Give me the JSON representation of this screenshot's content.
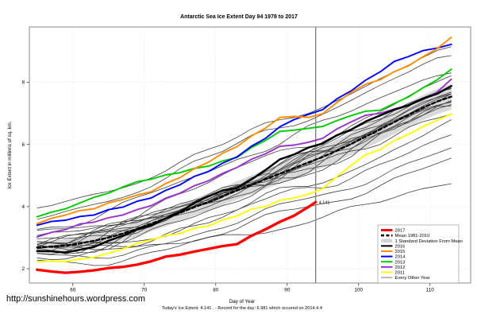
{
  "footer_url": "http://sunshinehours.wordpress.com",
  "chart_data": {
    "type": "line",
    "title": "Antarctic Sea Ice Extent Day 94 1978 to 2017",
    "xlabel": "Day of Year",
    "ylabel": "Ice Extent in millions of sq. km.",
    "caption": "Today's Ice Extent: 4.141 . - Record for the day: 6.981 which occured on 2014.4.4",
    "x_ticks": [
      60,
      70,
      80,
      90,
      100,
      110
    ],
    "y_ticks": [
      2,
      4,
      6,
      8
    ],
    "xlim": [
      54,
      115.5
    ],
    "ylim": [
      1.5,
      9.8
    ],
    "grid": "dotted",
    "marker_day": 94,
    "annotation": {
      "text": "4.141",
      "day": 94,
      "value": 4.141,
      "color": "#ff0000"
    },
    "days": [
      55,
      57,
      59,
      61,
      63,
      65,
      67,
      69,
      71,
      73,
      75,
      77,
      79,
      81,
      83,
      85,
      87,
      89,
      91,
      93,
      95,
      97,
      99,
      101,
      103,
      105,
      107,
      109,
      111,
      113
    ],
    "mean": {
      "name": "Mean 1981-2010",
      "color": "#000000",
      "values": [
        2.68,
        2.71,
        2.75,
        2.81,
        2.9,
        3.0,
        3.13,
        3.28,
        3.45,
        3.62,
        3.8,
        3.98,
        4.15,
        4.33,
        4.52,
        4.7,
        4.88,
        5.06,
        5.24,
        5.42,
        5.6,
        5.8,
        6.02,
        6.25,
        6.48,
        6.72,
        6.95,
        7.18,
        7.38,
        7.54
      ]
    },
    "band": {
      "name": "1 Standard Deviation From Mean",
      "color": "#d9d9d9",
      "start_halfwidth": 0.18,
      "end_halfwidth": 0.42
    },
    "series": [
      {
        "name": "2011",
        "color": "#ffff00",
        "values": [
          2.22,
          2.24,
          2.23,
          2.31,
          2.37,
          2.5,
          2.63,
          2.82,
          2.93,
          3.07,
          3.13,
          3.3,
          3.38,
          3.57,
          3.7,
          3.92,
          4.0,
          4.2,
          4.28,
          4.4,
          4.58,
          4.97,
          5.33,
          5.67,
          5.83,
          6.12,
          6.33,
          6.57,
          6.78,
          6.98
        ]
      },
      {
        "name": "2012",
        "color": "#9933cc",
        "values": [
          3.02,
          3.17,
          3.26,
          3.44,
          3.5,
          3.64,
          3.73,
          3.9,
          4.03,
          4.27,
          4.43,
          4.67,
          4.83,
          5.07,
          5.26,
          5.52,
          5.7,
          5.94,
          5.98,
          6.07,
          6.2,
          6.5,
          6.73,
          6.94,
          7.0,
          7.14,
          7.26,
          7.44,
          7.68,
          8.1
        ]
      },
      {
        "name": "2013",
        "color": "#00cc00",
        "values": [
          3.67,
          3.82,
          3.93,
          4.12,
          4.3,
          4.43,
          4.63,
          4.8,
          4.88,
          5.02,
          5.09,
          5.23,
          5.3,
          5.47,
          5.58,
          5.9,
          6.13,
          6.42,
          6.46,
          6.52,
          6.58,
          6.77,
          6.93,
          7.07,
          7.1,
          7.32,
          7.53,
          7.82,
          8.08,
          8.42
        ]
      },
      {
        "name": "2014",
        "color": "#0000ff",
        "values": [
          3.4,
          3.52,
          3.56,
          3.68,
          3.73,
          3.9,
          3.98,
          4.17,
          4.28,
          4.52,
          4.7,
          4.97,
          5.13,
          5.4,
          5.6,
          5.94,
          6.2,
          6.57,
          6.8,
          6.97,
          7.12,
          7.47,
          7.73,
          8.07,
          8.33,
          8.67,
          8.83,
          9.02,
          9.1,
          9.22
        ]
      },
      {
        "name": "2015",
        "color": "#ff8c00",
        "values": [
          3.45,
          3.62,
          3.73,
          3.87,
          3.93,
          4.12,
          4.23,
          4.37,
          4.48,
          4.74,
          4.93,
          5.22,
          5.43,
          5.72,
          5.93,
          6.27,
          6.53,
          6.87,
          6.9,
          6.87,
          6.99,
          7.35,
          7.68,
          7.94,
          8.08,
          8.34,
          8.53,
          8.82,
          9.08,
          9.45
        ]
      },
      {
        "name": "2016",
        "color": "#000000",
        "values": [
          2.57,
          2.56,
          2.52,
          2.61,
          2.7,
          2.9,
          3.06,
          3.27,
          3.4,
          3.62,
          3.83,
          4.12,
          4.33,
          4.52,
          4.6,
          4.87,
          5.18,
          5.52,
          5.68,
          5.9,
          6.03,
          6.3,
          6.48,
          6.74,
          6.93,
          7.12,
          7.26,
          7.47,
          7.63,
          7.88
        ]
      }
    ],
    "series_2017": {
      "name": "2017",
      "color": "#ff0000",
      "days": [
        55,
        57,
        59,
        61,
        63,
        65,
        67,
        69,
        71,
        73,
        75,
        77,
        79,
        81,
        83,
        85,
        87,
        89,
        91,
        93,
        94
      ],
      "values": [
        1.97,
        1.91,
        1.87,
        1.9,
        1.95,
        2.02,
        2.06,
        2.13,
        2.24,
        2.39,
        2.45,
        2.55,
        2.64,
        2.73,
        2.79,
        3.06,
        3.27,
        3.51,
        3.71,
        3.99,
        4.141
      ]
    },
    "other_years": {
      "name": "Every Other Year",
      "color": "#404040",
      "lines": [
        {
          "s": 2.15,
          "e": 5.6,
          "w": 0.12,
          "p": 1.0,
          "k": 1.15
        },
        {
          "s": 2.45,
          "e": 4.72,
          "w": 0.1,
          "p": 2.1,
          "k": 1.25
        },
        {
          "s": 2.35,
          "e": 5.95,
          "w": 0.11,
          "p": 0.9,
          "k": 1.18
        },
        {
          "s": 2.55,
          "e": 6.3,
          "w": 0.13,
          "p": 3.2,
          "k": 1.1
        },
        {
          "s": 2.5,
          "e": 6.6,
          "w": 0.12,
          "p": 5.4,
          "k": 1.08
        },
        {
          "s": 2.6,
          "e": 7.1,
          "w": 0.16,
          "p": 0.6,
          "k": 1.0
        },
        {
          "s": 2.72,
          "e": 7.25,
          "w": 0.18,
          "p": 1.7,
          "k": 1.0
        },
        {
          "s": 2.8,
          "e": 7.4,
          "w": 0.14,
          "p": 2.8,
          "k": 1.0
        },
        {
          "s": 2.62,
          "e": 7.55,
          "w": 0.17,
          "p": 3.9,
          "k": 1.0
        },
        {
          "s": 2.88,
          "e": 7.65,
          "w": 0.15,
          "p": 5.0,
          "k": 1.0
        },
        {
          "s": 2.95,
          "e": 7.8,
          "w": 0.13,
          "p": 0.2,
          "k": 1.0
        },
        {
          "s": 2.66,
          "e": 7.35,
          "w": 0.19,
          "p": 1.3,
          "k": 1.0
        },
        {
          "s": 2.75,
          "e": 7.9,
          "w": 0.16,
          "p": 2.4,
          "k": 1.0
        },
        {
          "s": 2.85,
          "e": 7.5,
          "w": 0.18,
          "p": 4.5,
          "k": 1.0
        },
        {
          "s": 2.7,
          "e": 7.45,
          "w": 0.17,
          "p": 0.4,
          "k": 1.0
        },
        {
          "s": 2.9,
          "e": 7.58,
          "w": 0.16,
          "p": 2.0,
          "k": 1.0
        },
        {
          "s": 2.78,
          "e": 7.7,
          "w": 0.15,
          "p": 3.0,
          "k": 1.0
        },
        {
          "s": 3.1,
          "e": 8.1,
          "w": 0.12,
          "p": 3.5,
          "k": 0.92
        },
        {
          "s": 3.3,
          "e": 8.45,
          "w": 0.1,
          "p": 4.6,
          "k": 0.85
        },
        {
          "s": 3.58,
          "e": 8.8,
          "w": 0.09,
          "p": 5.8,
          "k": 0.8
        },
        {
          "s": 3.95,
          "e": 9.05,
          "w": 0.08,
          "p": 5.7,
          "k": 0.84
        }
      ]
    },
    "legend": {
      "items": [
        {
          "label": "2017",
          "color": "#ff0000",
          "style": "thick"
        },
        {
          "label": "Mean 1981-2010",
          "color": "#000000",
          "style": "dashed"
        },
        {
          "label": "1 Standard Deviation From Mean",
          "color": "#d3d3d3",
          "style": "band"
        },
        {
          "label": "2016",
          "color": "#000000",
          "style": "line"
        },
        {
          "label": "2015",
          "color": "#ff8c00",
          "style": "line"
        },
        {
          "label": "2014",
          "color": "#0000ff",
          "style": "line"
        },
        {
          "label": "2013",
          "color": "#00cc00",
          "style": "line"
        },
        {
          "label": "2012",
          "color": "#9933cc",
          "style": "line"
        },
        {
          "label": "2011",
          "color": "#ffff00",
          "style": "line"
        },
        {
          "label": "Every Other Year",
          "color": "#666666",
          "style": "thin"
        }
      ]
    }
  }
}
